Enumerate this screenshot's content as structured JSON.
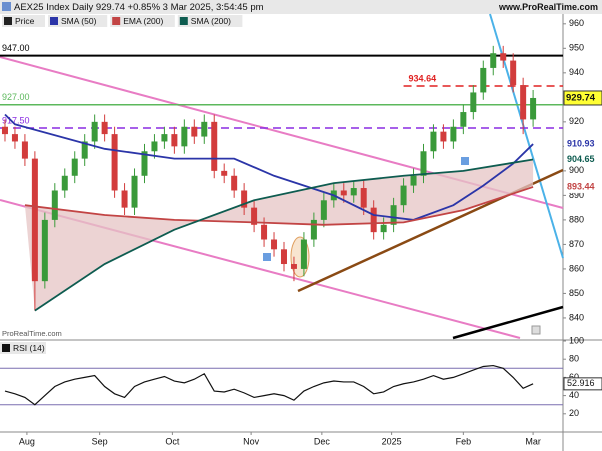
{
  "header": {
    "title": "AEX25 Index Daily 929.74 +0.85% 3 Mar 2025, 3:54:45 pm",
    "site": "www.ProRealTime.com",
    "watermark": "ProRealTime.com"
  },
  "chart_data": {
    "type": "candlestick",
    "price_name": "Price",
    "up_color": "#3a9a3a",
    "down_color": "#d23c3c",
    "open": [
      918,
      915,
      912,
      905,
      855,
      880,
      892,
      898,
      905,
      912,
      920,
      915,
      892,
      885,
      898,
      908,
      912,
      915,
      910,
      918,
      914,
      920,
      900,
      898,
      892,
      885,
      878,
      872,
      868,
      862,
      860,
      872,
      880,
      888,
      892,
      890,
      893,
      885,
      875,
      878,
      886,
      894,
      898,
      908,
      916,
      912,
      918,
      924,
      932,
      942,
      948,
      945,
      935,
      921
    ],
    "high": [
      921,
      918,
      915,
      908,
      883,
      895,
      901,
      908,
      915,
      923,
      923,
      918,
      895,
      901,
      911,
      915,
      918,
      918,
      921,
      921,
      923,
      923,
      903,
      901,
      895,
      888,
      881,
      875,
      871,
      865,
      875,
      883,
      891,
      895,
      895,
      896,
      896,
      888,
      881,
      889,
      897,
      901,
      911,
      919,
      919,
      921,
      927,
      935,
      945,
      951,
      951,
      948,
      938,
      933
    ],
    "low": [
      912,
      909,
      902,
      843,
      852,
      877,
      889,
      895,
      902,
      909,
      912,
      889,
      882,
      882,
      895,
      905,
      909,
      907,
      907,
      911,
      911,
      897,
      895,
      889,
      882,
      875,
      869,
      865,
      859,
      855,
      857,
      869,
      877,
      885,
      887,
      887,
      882,
      872,
      872,
      875,
      883,
      891,
      895,
      905,
      909,
      909,
      915,
      921,
      929,
      939,
      942,
      932,
      915,
      918
    ],
    "close": [
      915,
      912,
      905,
      855,
      880,
      892,
      898,
      905,
      912,
      920,
      915,
      892,
      885,
      898,
      908,
      912,
      915,
      910,
      918,
      914,
      920,
      900,
      898,
      892,
      885,
      878,
      872,
      868,
      862,
      860,
      872,
      880,
      888,
      892,
      890,
      893,
      885,
      875,
      878,
      886,
      894,
      898,
      908,
      916,
      912,
      918,
      924,
      932,
      942,
      948,
      945,
      935,
      921,
      929.74
    ],
    "xlim": [
      -0.5,
      56
    ],
    "xticks": [
      {
        "value": 2.2,
        "label": "Aug"
      },
      {
        "value": 9.5,
        "label": "Sep"
      },
      {
        "value": 16.8,
        "label": "Oct"
      },
      {
        "value": 24.7,
        "label": "Nov"
      },
      {
        "value": 31.8,
        "label": "Dec"
      },
      {
        "value": 38.8,
        "label": "2025"
      },
      {
        "value": 46,
        "label": "Feb"
      },
      {
        "value": 53,
        "label": "Mar"
      }
    ],
    "ylim": [
      831,
      964
    ],
    "yticks": [
      840,
      850,
      860,
      870,
      880,
      890,
      900,
      910,
      920,
      930,
      940,
      950,
      960
    ],
    "series": [
      {
        "name": "SMA (50)",
        "color": "#2b35a8",
        "x": [
          0,
          1,
          10,
          17,
          23,
          27,
          33,
          37,
          41,
          45,
          48,
          51,
          53
        ],
        "values": [
          923,
          919,
          909,
          905,
          905,
          898,
          890,
          882,
          880,
          886,
          894,
          903,
          910.93
        ]
      },
      {
        "name": "EMA (200)",
        "color": "#c24444",
        "x": [
          2,
          10,
          17,
          25,
          32,
          40,
          46,
          53
        ],
        "values": [
          886,
          882,
          880,
          879,
          878,
          879,
          884,
          893.44
        ]
      },
      {
        "name": "SMA (200)",
        "color": "#0e5c50",
        "x": [
          3,
          10,
          17,
          25,
          33,
          40,
          46,
          53
        ],
        "values": [
          843,
          862,
          876,
          888,
          895,
          898,
          900,
          904.65
        ]
      }
    ],
    "levels": [
      {
        "value": 947,
        "label": "947.00",
        "color": "#000000"
      },
      {
        "value": 927,
        "label": "927.00",
        "color": "#5cb85c"
      },
      {
        "value": 917.5,
        "label": "917.50",
        "color": "#8a2be2"
      },
      {
        "value": 934.64,
        "color": "#e02020"
      }
    ],
    "rsi": {
      "title": "RSI (14)",
      "color": "#111111",
      "ylim": [
        0,
        100
      ],
      "yticks": [
        20,
        40,
        60,
        80,
        100
      ],
      "bands": [
        30,
        70
      ],
      "values": [
        45,
        42,
        38,
        30,
        40,
        50,
        55,
        58,
        60,
        62,
        50,
        42,
        38,
        50,
        55,
        58,
        61,
        56,
        54,
        58,
        64,
        45,
        44,
        47,
        43,
        38,
        40,
        42,
        40,
        35,
        45,
        50,
        54,
        56,
        55,
        55,
        50,
        42,
        44,
        50,
        53,
        55,
        58,
        62,
        58,
        60,
        64,
        68,
        72,
        73,
        70,
        60,
        48,
        52.916
      ]
    }
  }
}
